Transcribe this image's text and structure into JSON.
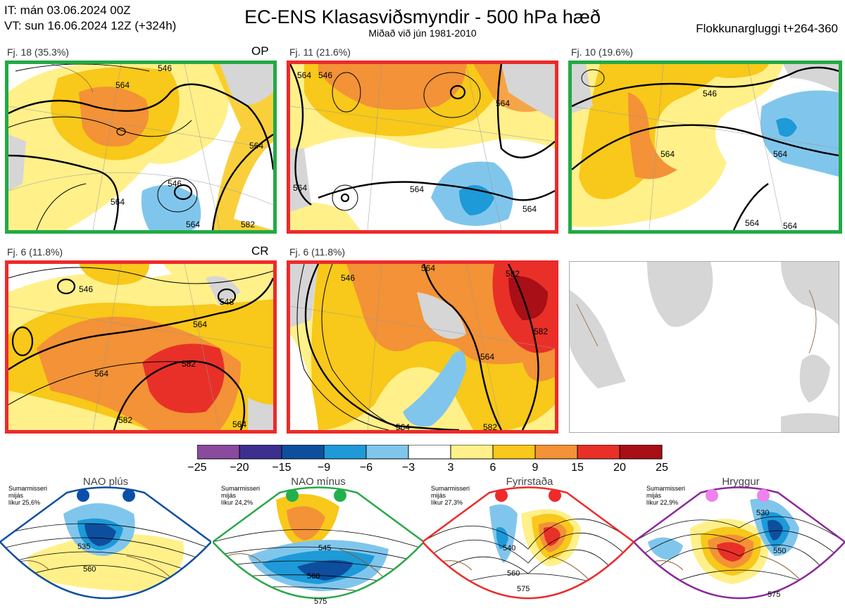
{
  "header": {
    "it_line": "IT: mán 03.06.2024 00Z",
    "vt_line": "VT: sun 16.06.2024 12Z  (+324h)",
    "title": "EC-ENS Klasasviðsmyndir - 500 hPa hæð",
    "subtitle": "Miðað við jún 1981-2010",
    "window": "Flokkunargluggi t+264-360"
  },
  "panels": [
    {
      "label": "Fj. 18 (35.3%)",
      "tag": "OP",
      "border": "#22aa44"
    },
    {
      "label": "Fj. 11 (21.6%)",
      "tag": "",
      "border": "#ee2a2a"
    },
    {
      "label": "Fj. 10 (19.6%)",
      "tag": "",
      "border": "#22aa44"
    },
    {
      "label": "Fj. 6 (11.8%)",
      "tag": "CR",
      "border": "#ee2a2a"
    },
    {
      "label": "Fj. 6 (11.8%)",
      "tag": "",
      "border": "#ee2a2a"
    },
    {
      "label": "",
      "tag": "",
      "border": "#aaaaaa"
    }
  ],
  "contour_labels": {
    "p1": [
      "546",
      "564",
      "564",
      "546",
      "564",
      "564",
      "582"
    ],
    "p2": [
      "564",
      "564",
      "564",
      "564",
      "564",
      "546"
    ],
    "p3": [
      "546",
      "564",
      "564",
      "564",
      "564"
    ],
    "p4": [
      "546",
      "548",
      "564",
      "564",
      "582",
      "582",
      "564"
    ],
    "p5": [
      "546",
      "564",
      "564",
      "582",
      "582",
      "564",
      "582"
    ]
  },
  "colorbar": {
    "ticks": [
      "−25",
      "−20",
      "−15",
      "−9",
      "−6",
      "−3",
      "3",
      "6",
      "9",
      "15",
      "20",
      "25"
    ],
    "colors": [
      "#8a4a9e",
      "#3d2f8f",
      "#0d4f9e",
      "#1e9ad8",
      "#80c6ec",
      "#ffffff",
      "#fff08a",
      "#f8c81a",
      "#f39236",
      "#e83028",
      "#a80f16"
    ]
  },
  "regimes": [
    {
      "name": "NAO plús",
      "season": "Sumarmisseri",
      "kind": "mijás",
      "prob": "líkur 25,6%",
      "color": "#0f4fa0",
      "dot": "#0a4fa8",
      "labels": [
        "535",
        "560"
      ]
    },
    {
      "name": "NAO mínus",
      "season": "Sumarmisseri",
      "kind": "mijás",
      "prob": "líkur 24,2%",
      "color": "#2aa84a",
      "dot": "#22b04c",
      "labels": [
        "545",
        "560",
        "575"
      ]
    },
    {
      "name": "Fyrirstaða",
      "season": "Sumarmisseri",
      "kind": "mijás",
      "prob": "líkur 27,3%",
      "color": "#ee2a2a",
      "dot": "#ee2a2a",
      "labels": [
        "540",
        "560",
        "575"
      ]
    },
    {
      "name": "Hryggur",
      "season": "Sumarmisseri",
      "kind": "mijás",
      "prob": "líkur 22,9%",
      "color": "#8a2a9a",
      "dot": "#ee82ee",
      "labels": [
        "530",
        "550",
        "575"
      ]
    }
  ]
}
